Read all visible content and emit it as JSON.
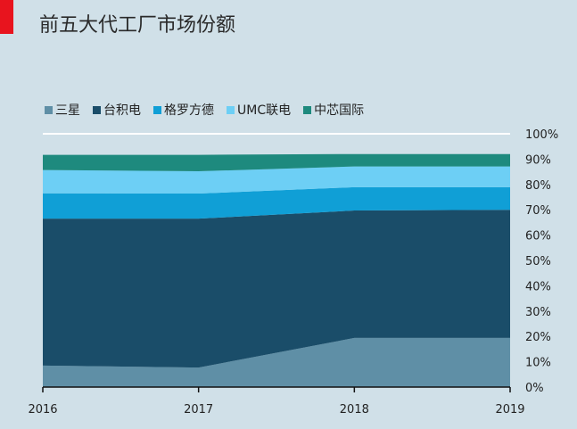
{
  "title": "前五大代工厂市场份额",
  "chart_data": {
    "type": "area",
    "stacked": true,
    "title": "前五大代工厂市场份额",
    "x": [
      "2016",
      "2017",
      "2018",
      "2019"
    ],
    "series": [
      {
        "name": "三星",
        "color": "#5f8fa6",
        "values": [
          8.5,
          7.7,
          19.4,
          19.4
        ]
      },
      {
        "name": "台积电",
        "color": "#1a4d69",
        "values": [
          58.0,
          58.8,
          50.3,
          50.6
        ]
      },
      {
        "name": "格罗方德",
        "color": "#109fd6",
        "values": [
          10.0,
          9.9,
          9.2,
          8.9
        ]
      },
      {
        "name": "UMC联电",
        "color": "#6dcff5",
        "values": [
          9.2,
          8.8,
          8.2,
          8.2
        ]
      },
      {
        "name": "中芯国际",
        "color": "#1e8a7e",
        "values": [
          6.0,
          6.5,
          4.9,
          4.9
        ]
      }
    ],
    "ylim": [
      0,
      100
    ],
    "yticks": [
      "0%",
      "10%",
      "20%",
      "30%",
      "40%",
      "50%",
      "60%",
      "70%",
      "80%",
      "90%",
      "100%"
    ],
    "y_axis_position": "right",
    "legend": "top-left",
    "grid": false
  }
}
